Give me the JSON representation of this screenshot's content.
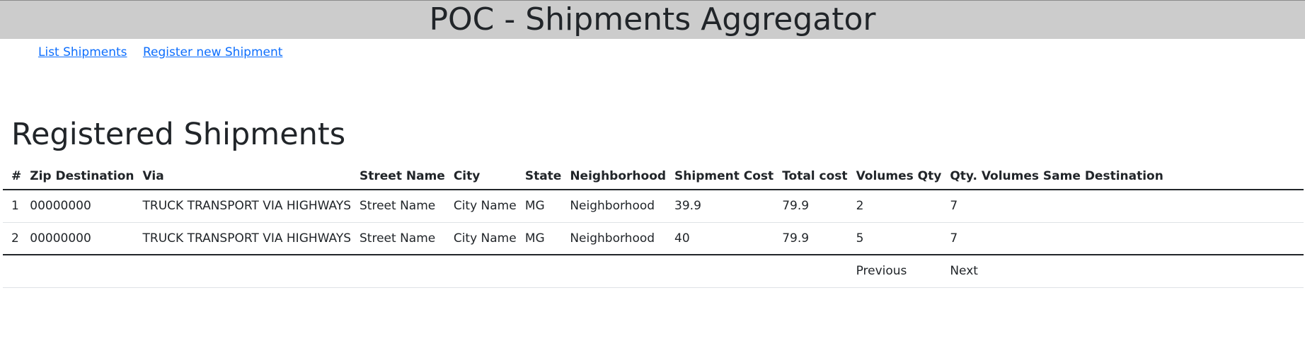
{
  "app": {
    "title": "POC - Shipments Aggregator"
  },
  "nav": {
    "list_label": "List Shipments",
    "register_label": "Register new Shipment"
  },
  "page": {
    "title": "Registered Shipments"
  },
  "table": {
    "headers": [
      "#",
      "Zip Destination",
      "Via",
      "Street Name",
      "City",
      "State",
      "Neighborhood",
      "Shipment Cost",
      "Total cost",
      "Volumes Qty",
      "Qty. Volumes Same Destination"
    ],
    "rows": [
      [
        "1",
        "00000000",
        "TRUCK TRANSPORT VIA HIGHWAYS",
        "Street Name",
        "City Name",
        "MG",
        "Neighborhood",
        "39.9",
        "79.9",
        "2",
        "7"
      ],
      [
        "2",
        "00000000",
        "TRUCK TRANSPORT VIA HIGHWAYS",
        "Street Name",
        "City Name",
        "MG",
        "Neighborhood",
        "40",
        "79.9",
        "5",
        "7"
      ]
    ]
  },
  "pagination": {
    "previous_label": "Previous",
    "next_label": "Next"
  },
  "colors": {
    "header_bg": "#cccccc",
    "link": "#0d6efd",
    "text": "#212529"
  }
}
